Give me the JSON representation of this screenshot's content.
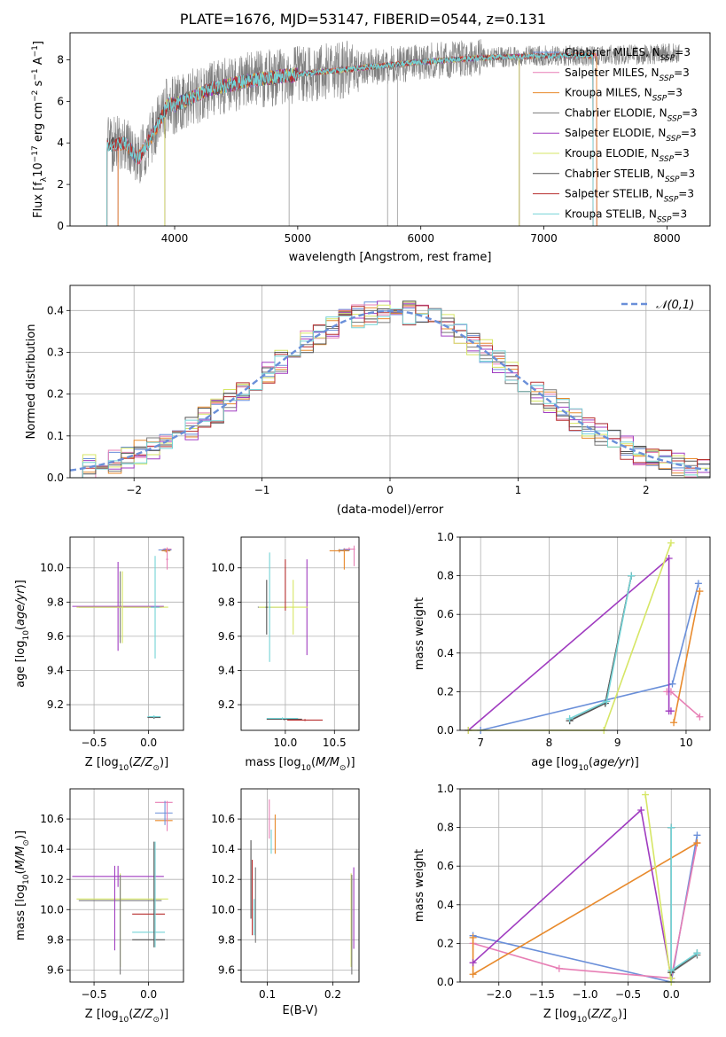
{
  "title": "PLATE=1676, MJD=53147, FIBERID=0544, z=0.131",
  "colors": {
    "chabrier_miles": "#6a8fd9",
    "salpeter_miles": "#e77fb5",
    "kroupa_miles": "#e88a2c",
    "chabrier_elodie": "#7a7a7a",
    "salpeter_elodie": "#a03cc0",
    "kroupa_elodie": "#d6e665",
    "chabrier_stelib": "#555555",
    "salpeter_stelib": "#b83030",
    "kroupa_stelib": "#74d3d6",
    "data": "#808080",
    "gaussian": "#6a8fd9",
    "grid": "#b0b0b0"
  },
  "chart_data": [
    {
      "type": "line",
      "panel": "spectrum",
      "xlabel": "wavelength [Angstrom, rest frame]",
      "ylabel": "Flux [f_λ 10⁻¹⁷ erg cm⁻² s⁻¹ A⁻¹]",
      "xlim": [
        3150,
        8350
      ],
      "ylim": [
        0,
        9.3
      ],
      "xticks": [
        4000,
        5000,
        6000,
        7000,
        8000
      ],
      "yticks": [
        0,
        2,
        4,
        6,
        8
      ],
      "grid": false,
      "legend_position": "upper-right",
      "legend": [
        "Chabrier MILES, N_SSP=3",
        "Salpeter MILES, N_SSP=3",
        "Kroupa MILES, N_SSP=3",
        "Chabrier ELODIE, N_SSP=3",
        "Salpeter ELODIE, N_SSP=3",
        "Kroupa ELODIE, N_SSP=3",
        "Chabrier STELIB, N_SSP=3",
        "Salpeter STELIB, N_SSP=3",
        "Kroupa STELIB, N_SSP=3"
      ],
      "continuum_x": [
        3450,
        3600,
        3700,
        3850,
        3950,
        4000,
        4100,
        4300,
        4600,
        5000,
        5500,
        6000,
        6500,
        7000,
        7400,
        8000,
        8100
      ],
      "continuum_y": [
        3.9,
        4.0,
        3.2,
        4.7,
        5.9,
        5.8,
        6.1,
        6.6,
        7.0,
        7.3,
        7.6,
        7.9,
        8.1,
        8.2,
        8.2,
        8.3,
        8.3
      ],
      "model_end_wavelengths": {
        "miles": 7430,
        "elodie": 6800,
        "stelib": 7400
      },
      "model_start_wavelengths": {
        "miles": 3540,
        "elodie": 3920,
        "stelib": 3450
      }
    },
    {
      "type": "histogram",
      "panel": "residuals",
      "xlabel": "(data-model)/error",
      "ylabel": "Normed distribution",
      "xlim": [
        -2.5,
        2.5
      ],
      "ylim": [
        0,
        0.46
      ],
      "xticks": [
        -2,
        -1,
        0,
        1,
        2
      ],
      "yticks": [
        0.0,
        0.1,
        0.2,
        0.3,
        0.4
      ],
      "grid": true,
      "legend": [
        "𝒩(0,1)"
      ],
      "legend_position": "upper-right",
      "bin_width": 0.1
    },
    {
      "type": "scatter",
      "panel": "Z-age",
      "xlabel": "Z [log10(Z/Z⊙)]",
      "ylabel": "age  [log10(age/yr)]",
      "xlim": [
        -0.72,
        0.32
      ],
      "ylim": [
        9.05,
        10.18
      ],
      "xticks": [
        -0.5,
        0.0
      ],
      "yticks": [
        9.2,
        9.4,
        9.6,
        9.8,
        10.0
      ],
      "grid": true,
      "points": [
        {
          "s": "chabrier_elodie",
          "x": -0.26,
          "y": 9.77,
          "xe": 0.38,
          "ye": 0.21
        },
        {
          "s": "salpeter_elodie",
          "x": -0.28,
          "y": 9.775,
          "xe": 0.42,
          "ye": 0.26
        },
        {
          "s": "kroupa_elodie",
          "x": -0.24,
          "y": 9.77,
          "xe": 0.42,
          "ye": 0.21
        },
        {
          "s": "kroupa_stelib",
          "x": 0.06,
          "y": 9.77,
          "xe": 0.04,
          "ye": 0.3
        },
        {
          "s": "chabrier_stelib",
          "x": 0.05,
          "y": 9.125,
          "xe": 0.06,
          "ye": 0.008
        },
        {
          "s": "kroupa_stelib",
          "x": 0.05,
          "y": 9.13,
          "xe": 0.06,
          "ye": 0.008
        },
        {
          "s": "salpeter_miles",
          "x": 0.17,
          "y": 10.11,
          "xe": 0.04,
          "ye": 0.01
        },
        {
          "s": "chabrier_miles",
          "x": 0.15,
          "y": 10.105,
          "xe": 0.06,
          "ye": 0.01
        },
        {
          "s": "kroupa_miles",
          "x": 0.16,
          "y": 10.1,
          "xe": 0.04,
          "ye": 0.01
        },
        {
          "s": "salpeter_miles",
          "x": 0.17,
          "y": 10.05,
          "xe": 0.01,
          "ye": 0.06
        }
      ]
    },
    {
      "type": "scatter",
      "panel": "mass-age",
      "xlabel": "mass [log10(M/M⊙)]",
      "ylabel": "",
      "xlim": [
        9.55,
        10.75
      ],
      "ylim": [
        9.05,
        10.18
      ],
      "xticks": [
        10.0,
        10.5
      ],
      "yticks": [
        9.2,
        9.4,
        9.6,
        9.8,
        10.0
      ],
      "grid": true,
      "points": [
        {
          "s": "chabrier_elodie",
          "x": 9.87,
          "y": 9.77,
          "xe": 0.15,
          "ye": 0.0
        },
        {
          "s": "salpeter_elodie",
          "x": 10.22,
          "y": 9.77,
          "xe": 0.0,
          "ye": 0.28
        },
        {
          "s": "kroupa_elodie",
          "x": 9.98,
          "y": 9.77,
          "xe": 0.25,
          "ye": 0.0
        },
        {
          "s": "kroupa_stelib",
          "x": 9.84,
          "y": 9.77,
          "xe": 0.01,
          "ye": 0.32
        },
        {
          "s": "chabrier_stelib",
          "x": 9.81,
          "y": 9.77,
          "xe": 0.01,
          "ye": 0.16
        },
        {
          "s": "kroupa_elodie",
          "x": 10.08,
          "y": 9.77,
          "xe": 0.01,
          "ye": 0.16
        },
        {
          "s": "salpeter_stelib",
          "x": 10.0,
          "y": 9.9,
          "xe": 0.0,
          "ye": 0.15
        },
        {
          "s": "chabrier_stelib",
          "x": 9.99,
          "y": 9.115,
          "xe": 0.18,
          "ye": 0.006
        },
        {
          "s": "kroupa_stelib",
          "x": 9.97,
          "y": 9.12,
          "xe": 0.16,
          "ye": 0.006
        },
        {
          "s": "salpeter_stelib",
          "x": 10.2,
          "y": 9.11,
          "xe": 0.18,
          "ye": 0.006
        },
        {
          "s": "salpeter_miles",
          "x": 10.65,
          "y": 10.11,
          "xe": 0.06,
          "ye": 0.01
        },
        {
          "s": "chabrier_miles",
          "x": 10.6,
          "y": 10.105,
          "xe": 0.06,
          "ye": 0.01
        },
        {
          "s": "kroupa_miles",
          "x": 10.55,
          "y": 10.1,
          "xe": 0.1,
          "ye": 0.01
        },
        {
          "s": "salpeter_miles",
          "x": 10.7,
          "y": 10.07,
          "xe": 0.0,
          "ye": 0.06
        },
        {
          "s": "kroupa_miles",
          "x": 10.6,
          "y": 10.05,
          "xe": 0.0,
          "ye": 0.06
        }
      ]
    },
    {
      "type": "line",
      "panel": "age-weight",
      "xlabel": "age  [log10(age/yr)]",
      "ylabel": "mass weight",
      "xlim": [
        6.7,
        10.35
      ],
      "ylim": [
        0,
        1.0
      ],
      "xticks": [
        7,
        8,
        9,
        10
      ],
      "yticks": [
        0.0,
        0.2,
        0.4,
        0.6,
        0.8,
        1.0
      ],
      "grid": true,
      "series": [
        {
          "s": "chabrier_miles",
          "x": [
            7.0,
            9.8,
            10.18
          ],
          "y": [
            0.0,
            0.24,
            0.76
          ]
        },
        {
          "s": "salpeter_miles",
          "x": [
            9.72,
            9.78,
            10.2
          ],
          "y": [
            0.2,
            0.2,
            0.07
          ]
        },
        {
          "s": "kroupa_miles",
          "x": [
            9.82,
            10.2
          ],
          "y": [
            0.04,
            0.72
          ]
        },
        {
          "s": "chabrier_elodie",
          "x": [
            8.3,
            8.82,
            9.2,
            9.2
          ],
          "y": [
            0.05,
            0.14,
            0.8,
            0.8
          ]
        },
        {
          "s": "salpeter_elodie",
          "x": [
            6.82,
            9.75,
            9.75,
            9.78
          ],
          "y": [
            0.0,
            0.89,
            0.1,
            0.1
          ]
        },
        {
          "s": "kroupa_elodie",
          "x": [
            6.82,
            8.8,
            9.78
          ],
          "y": [
            0.0,
            0.0,
            0.97
          ]
        },
        {
          "s": "chabrier_stelib",
          "x": [
            8.3,
            8.82,
            9.2
          ],
          "y": [
            0.05,
            0.14,
            0.8
          ]
        },
        {
          "s": "kroupa_stelib",
          "x": [
            8.3,
            8.84,
            9.2
          ],
          "y": [
            0.06,
            0.15,
            0.8
          ]
        }
      ]
    },
    {
      "type": "scatter",
      "panel": "Z-mass",
      "xlabel": "Z [log10(Z/Z⊙)]",
      "ylabel": "mass [log10(M/M⊙)]",
      "xlim": [
        -0.72,
        0.32
      ],
      "ylim": [
        9.52,
        10.8
      ],
      "xticks": [
        -0.5,
        0.0
      ],
      "yticks": [
        9.6,
        9.8,
        10.0,
        10.2,
        10.4,
        10.6
      ],
      "grid": true,
      "points": [
        {
          "s": "salpeter_elodie",
          "x": -0.28,
          "y": 10.22,
          "xe": 0.42,
          "ye": 0.07
        },
        {
          "s": "kroupa_elodie",
          "x": -0.24,
          "y": 10.07,
          "xe": 0.42,
          "ye": 0.0
        },
        {
          "s": "chabrier_elodie",
          "x": -0.26,
          "y": 10.06,
          "xe": 0.38,
          "ye": 0.0
        },
        {
          "s": "salpeter_elodie",
          "x": -0.31,
          "y": 10.01,
          "xe": 0.0,
          "ye": 0.28
        },
        {
          "s": "kroupa_elodie",
          "x": -0.26,
          "y": 9.93,
          "xe": 0.0,
          "ye": 0.31
        },
        {
          "s": "chabrier_elodie",
          "x": -0.26,
          "y": 9.9,
          "xe": 0.0,
          "ye": 0.33
        },
        {
          "s": "salpeter_stelib",
          "x": 0.0,
          "y": 9.97,
          "xe": 0.15,
          "ye": 0.0
        },
        {
          "s": "kroupa_stelib",
          "x": 0.0,
          "y": 9.85,
          "xe": 0.15,
          "ye": 0.0
        },
        {
          "s": "chabrier_stelib",
          "x": 0.0,
          "y": 9.8,
          "xe": 0.15,
          "ye": 0.0
        },
        {
          "s": "chabrier_stelib",
          "x": 0.05,
          "y": 10.1,
          "xe": 0.0,
          "ye": 0.35
        },
        {
          "s": "kroupa_stelib",
          "x": 0.06,
          "y": 10.1,
          "xe": 0.0,
          "ye": 0.35
        },
        {
          "s": "salpeter_miles",
          "x": 0.14,
          "y": 10.71,
          "xe": 0.08,
          "ye": 0.0
        },
        {
          "s": "chabrier_miles",
          "x": 0.14,
          "y": 10.64,
          "xe": 0.08,
          "ye": 0.0
        },
        {
          "s": "kroupa_miles",
          "x": 0.14,
          "y": 10.59,
          "xe": 0.08,
          "ye": 0.0
        },
        {
          "s": "salpeter_miles",
          "x": 0.17,
          "y": 10.62,
          "xe": 0.0,
          "ye": 0.1
        },
        {
          "s": "chabrier_miles",
          "x": 0.15,
          "y": 10.64,
          "xe": 0.0,
          "ye": 0.08
        }
      ]
    },
    {
      "type": "scatter",
      "panel": "ebv-mass",
      "xlabel": "E(B-V)",
      "ylabel": "",
      "xlim": [
        0.06,
        0.24
      ],
      "ylim": [
        9.52,
        10.8
      ],
      "xticks": [
        0.1,
        0.2
      ],
      "yticks": [
        9.6,
        9.8,
        10.0,
        10.2,
        10.4,
        10.6
      ],
      "grid": true,
      "points": [
        {
          "s": "chabrier_stelib",
          "x": 0.075,
          "y": 10.2,
          "xe": 0.0,
          "ye": 0.26
        },
        {
          "s": "salpeter_stelib",
          "x": 0.077,
          "y": 10.08,
          "xe": 0.0,
          "ye": 0.25
        },
        {
          "s": "kroupa_stelib",
          "x": 0.08,
          "y": 9.95,
          "xe": 0.0,
          "ye": 0.12
        },
        {
          "s": "chabrier_elodie",
          "x": 0.082,
          "y": 10.03,
          "xe": 0.0,
          "ye": 0.25
        },
        {
          "s": "salpeter_miles",
          "x": 0.103,
          "y": 10.6,
          "xe": 0.0,
          "ye": 0.13
        },
        {
          "s": "kroupa_stelib",
          "x": 0.106,
          "y": 10.45,
          "xe": 0.0,
          "ye": 0.08
        },
        {
          "s": "kroupa_miles",
          "x": 0.112,
          "y": 10.5,
          "xe": 0.0,
          "ye": 0.13
        },
        {
          "s": "salpeter_elodie",
          "x": 0.232,
          "y": 10.01,
          "xe": 0.0,
          "ye": 0.27
        },
        {
          "s": "kroupa_elodie",
          "x": 0.228,
          "y": 9.93,
          "xe": 0.0,
          "ye": 0.31
        },
        {
          "s": "chabrier_elodie",
          "x": 0.229,
          "y": 9.9,
          "xe": 0.0,
          "ye": 0.33
        }
      ]
    },
    {
      "type": "line",
      "panel": "Z-weight",
      "xlabel": "Z [log10(Z/Z⊙)]",
      "ylabel": "mass weight",
      "xlim": [
        -2.45,
        0.45
      ],
      "ylim": [
        0,
        1.0
      ],
      "xticks": [
        -2.0,
        -1.5,
        -1.0,
        -0.5,
        0.0
      ],
      "yticks": [
        0.0,
        0.2,
        0.4,
        0.6,
        0.8,
        1.0
      ],
      "grid": true,
      "series": [
        {
          "s": "chabrier_miles",
          "x": [
            -2.3,
            0.0,
            0.3
          ],
          "y": [
            0.24,
            0.0,
            0.76
          ]
        },
        {
          "s": "salpeter_miles",
          "x": [
            -2.3,
            -1.3,
            0.0,
            0.3
          ],
          "y": [
            0.2,
            0.07,
            0.02,
            0.72
          ]
        },
        {
          "s": "kroupa_miles",
          "x": [
            -2.3,
            -2.3,
            0.3
          ],
          "y": [
            0.23,
            0.04,
            0.72
          ]
        },
        {
          "s": "salpeter_elodie",
          "x": [
            -2.3,
            -0.35,
            0.0
          ],
          "y": [
            0.1,
            0.89,
            0.02
          ]
        },
        {
          "s": "kroupa_elodie",
          "x": [
            -0.3,
            0.0,
            0.0
          ],
          "y": [
            0.97,
            0.0,
            0.02
          ]
        },
        {
          "s": "chabrier_elodie",
          "x": [
            0.0,
            0.0,
            0.3
          ],
          "y": [
            0.8,
            0.05,
            0.14
          ]
        },
        {
          "s": "chabrier_stelib",
          "x": [
            0.0,
            0.0,
            0.3
          ],
          "y": [
            0.8,
            0.05,
            0.15
          ]
        },
        {
          "s": "kroupa_stelib",
          "x": [
            0.0,
            0.0,
            0.3
          ],
          "y": [
            0.8,
            0.06,
            0.15
          ]
        }
      ]
    }
  ]
}
